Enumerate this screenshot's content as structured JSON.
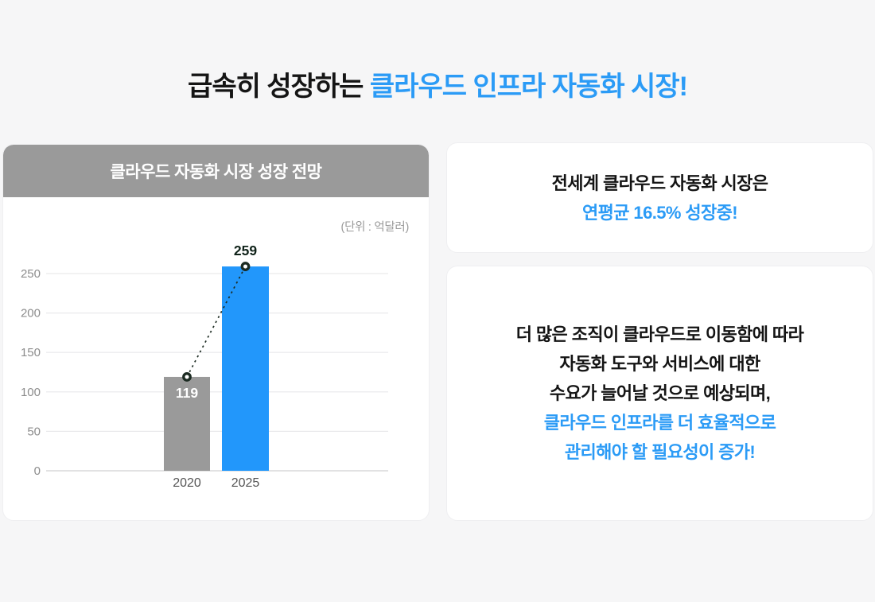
{
  "page": {
    "background_color": "#f6f6f7",
    "accent_blue": "#2b9bf6"
  },
  "title": {
    "prefix": "급속히 성장하는 ",
    "highlight": "클라우드 인프라 자동화 시장!"
  },
  "chart_card": {
    "header": "클라우드 자동화 시장 성장 전망",
    "header_bg": "#9a9a9a",
    "unit_label": "(단위 : 억달러)"
  },
  "chart_data": {
    "type": "bar",
    "title": "클라우드 자동화 시장 성장 전망",
    "unit": "(단위 : 억달러)",
    "categories": [
      "2020",
      "2025"
    ],
    "values": [
      119,
      259
    ],
    "bar_colors": [
      "#9a9a9a",
      "#2297fb"
    ],
    "value_label_positions": [
      "inside",
      "above"
    ],
    "value_label_colors": [
      "#ffffff",
      "#10231a"
    ],
    "xlabel": "",
    "ylabel": "",
    "ylim": [
      0,
      260
    ],
    "yticks": [
      0,
      50,
      100,
      150,
      200,
      250
    ],
    "grid": true,
    "gridline_color": "#e9e9eb",
    "axis_line_color": "#d8d8da",
    "tick_label_color": "#8c8c8c",
    "category_label_color": "#555555",
    "trend_line": {
      "style": "dashed",
      "color": "#1c2b22",
      "markers": "open-circle",
      "from_value": 119,
      "to_value": 259
    }
  },
  "info_cards": [
    {
      "lines": [
        {
          "text": "전세계 클라우드 자동화 시장은",
          "color": "#141414"
        },
        {
          "text": "연평균 16.5% 성장중!",
          "color": "#2b9bf6"
        }
      ]
    },
    {
      "lines": [
        {
          "text": "더 많은 조직이 클라우드로 이동함에 따라",
          "color": "#141414"
        },
        {
          "text": "자동화 도구와 서비스에 대한",
          "color": "#141414"
        },
        {
          "text": "수요가 늘어날 것으로 예상되며,",
          "color": "#141414"
        },
        {
          "text": "클라우드 인프라를 더 효율적으로",
          "color": "#2b9bf6"
        },
        {
          "text": "관리해야 할 필요성이 증가!",
          "color": "#2b9bf6"
        }
      ]
    }
  ]
}
